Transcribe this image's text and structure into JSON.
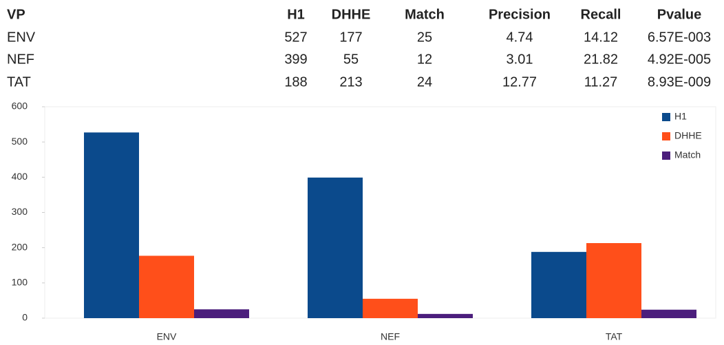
{
  "table": {
    "header": [
      "VP",
      "H1",
      "DHHE",
      "Match",
      "Precision",
      "Recall",
      "Pvalue"
    ],
    "rows": [
      [
        "ENV",
        "527",
        "177",
        "25",
        "4.74",
        "14.12",
        "6.57E-003"
      ],
      [
        "NEF",
        "399",
        "55",
        "12",
        "3.01",
        "21.82",
        "4.92E-005"
      ],
      [
        "TAT",
        "188",
        "213",
        "24",
        "12.77",
        "11.27",
        "8.93E-009"
      ]
    ]
  },
  "chart_data": {
    "type": "bar",
    "categories": [
      "ENV",
      "NEF",
      "TAT"
    ],
    "series": [
      {
        "name": "H1",
        "color": "#0b4a8c",
        "values": [
          527,
          399,
          188
        ]
      },
      {
        "name": "DHHE",
        "color": "#ff4f1a",
        "values": [
          177,
          55,
          213
        ]
      },
      {
        "name": "Match",
        "color": "#4b1e7c",
        "values": [
          25,
          12,
          24
        ]
      }
    ],
    "ylim": [
      0,
      600
    ],
    "yticks": [
      0,
      100,
      200,
      300,
      400,
      500,
      600
    ],
    "legend": "top-right"
  }
}
